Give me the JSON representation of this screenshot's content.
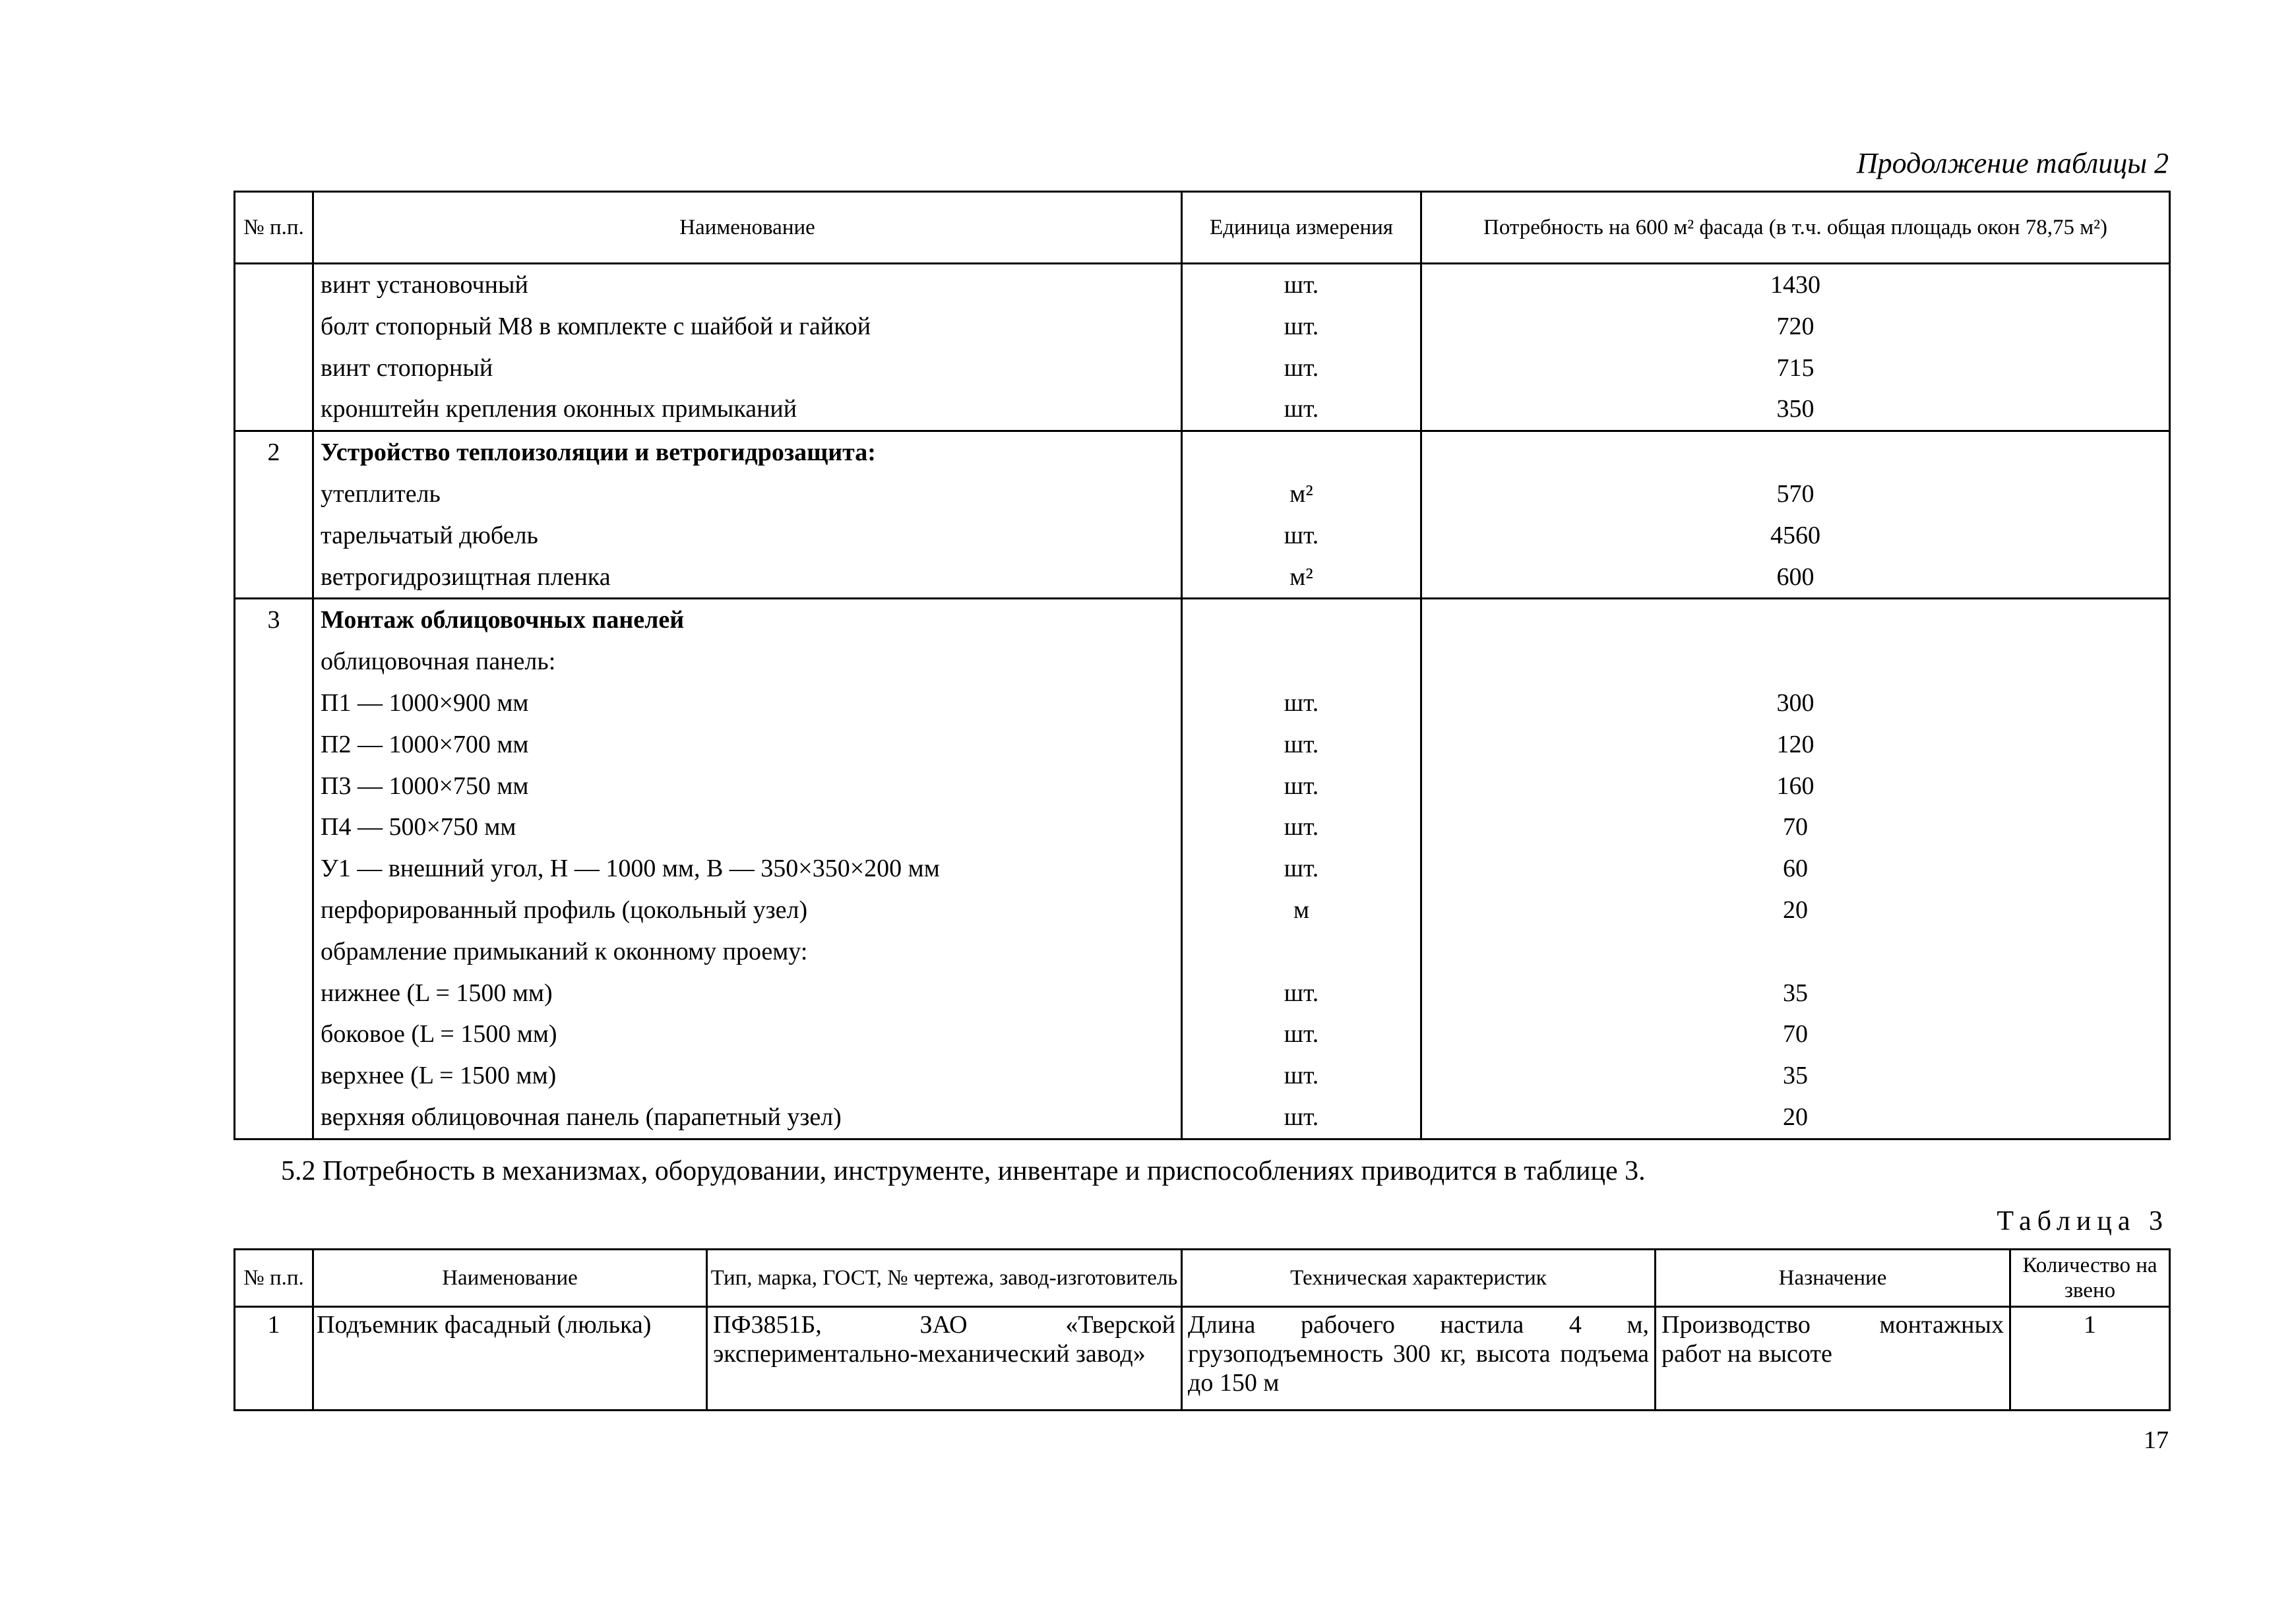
{
  "table2": {
    "caption": "Продолжение таблицы 2",
    "headers": [
      "№ п.п.",
      "Наименование",
      "Единица измерения",
      "Потребность на 600 м² фасада (в т.ч. общая площадь окон 78,75 м²)"
    ],
    "groups": [
      {
        "num": "",
        "rows": [
          {
            "name": "винт установочный",
            "unit": "шт.",
            "qty": "1430"
          },
          {
            "name": "болт стопорный М8 в комплекте с шайбой и гайкой",
            "unit": "шт.",
            "qty": "720"
          },
          {
            "name": "винт стопорный",
            "unit": "шт.",
            "qty": "715"
          },
          {
            "name": "кронштейн крепления оконных примыканий",
            "unit": "шт.",
            "qty": "350"
          }
        ]
      },
      {
        "num": "2",
        "rows": [
          {
            "name": "Устройство теплоизоляции и ветрогидрозащита:",
            "unit": "",
            "qty": "",
            "bold": true
          },
          {
            "name": "утеплитель",
            "unit": "м²",
            "qty": "570"
          },
          {
            "name": "тарельчатый дюбель",
            "unit": "шт.",
            "qty": "4560"
          },
          {
            "name": "ветрогидрозищтная пленка",
            "unit": "м²",
            "qty": "600"
          }
        ]
      },
      {
        "num": "3",
        "rows": [
          {
            "name": "Монтаж облицовочных панелей",
            "unit": "",
            "qty": "",
            "bold": true
          },
          {
            "name": "облицовочная панель:",
            "unit": "",
            "qty": ""
          },
          {
            "name": "П1 — 1000×900 мм",
            "unit": "шт.",
            "qty": "300"
          },
          {
            "name": "П2 — 1000×700 мм",
            "unit": "шт.",
            "qty": "120"
          },
          {
            "name": "П3 — 1000×750 мм",
            "unit": "шт.",
            "qty": "160"
          },
          {
            "name": "П4 — 500×750 мм",
            "unit": "шт.",
            "qty": "70"
          },
          {
            "name": "У1 — внешний угол, Н — 1000 мм, В — 350×350×200 мм",
            "unit": "шт.",
            "qty": "60"
          },
          {
            "name": "перфорированный профиль (цокольный узел)",
            "unit": "м",
            "qty": "20"
          },
          {
            "name": "обрамление примыканий к оконному проему:",
            "unit": "",
            "qty": ""
          },
          {
            "name": "нижнее (L = 1500 мм)",
            "unit": "шт.",
            "qty": "35"
          },
          {
            "name": "боковое (L = 1500 мм)",
            "unit": "шт.",
            "qty": "70"
          },
          {
            "name": "верхнее (L = 1500 мм)",
            "unit": "шт.",
            "qty": "35"
          },
          {
            "name": "верхняя облицовочная панель (парапетный узел)",
            "unit": "шт.",
            "qty": "20"
          }
        ]
      }
    ]
  },
  "paragraph": "5.2 Потребность в механизмах, оборудовании, инструменте, инвентаре и приспособлениях приводится в таблице 3.",
  "table3": {
    "caption": "Таблица 3",
    "headers": [
      "№ п.п.",
      "Наименование",
      "Тип, марка, ГОСТ, № чертежа, завод-изготовитель",
      "Техническая характеристик",
      "Назначение",
      "Количество на звено"
    ],
    "rows": [
      [
        "1",
        "Подъемник фасадный (люлька)",
        "ПФ3851Б, ЗАО «Тверской экспериментально-механический завод»",
        "Длина рабочего настила 4 м, грузоподъемность 300 кг, высота подъема до 150 м",
        "Производство монтажных работ на высоте",
        "1"
      ]
    ]
  },
  "page_number": "17"
}
